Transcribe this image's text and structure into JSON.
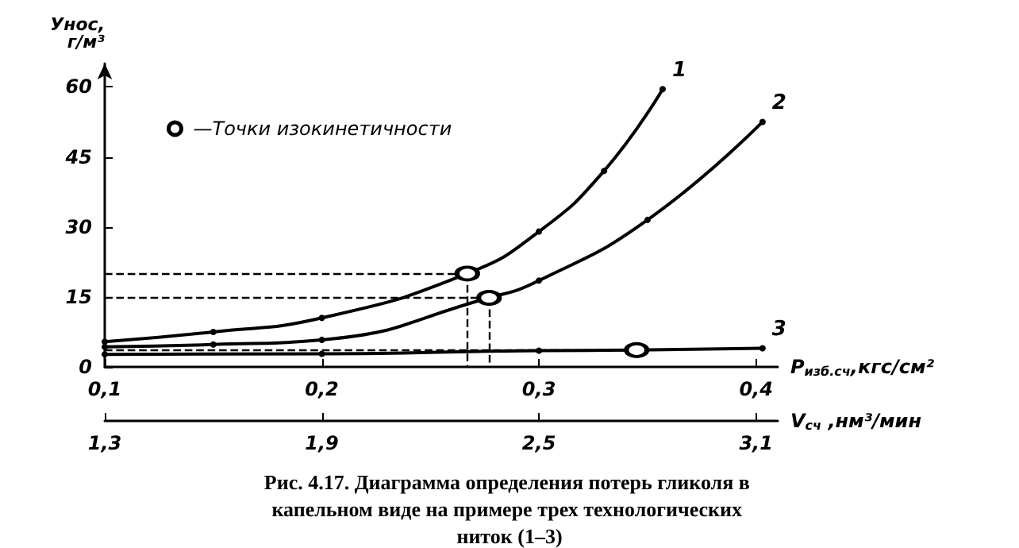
{
  "chart_data": {
    "type": "line",
    "title": "Рис. 4.17. Диаграмма определения потерь гликоля в капельном виде на примере трех технологических ниток (1–3)",
    "ylabel": "Унос,\nг/м³",
    "xlabel": "P$_{изб.сч}$,кгс/см²",
    "x2label": "V$_{сч}$ ,нм³/мин",
    "xlim": [
      0.1,
      0.41
    ],
    "xticks": [
      {
        "value": 0.1,
        "label": "0,1"
      },
      {
        "value": 0.2,
        "label": "0,2"
      },
      {
        "value": 0.3,
        "label": "0,3"
      },
      {
        "value": 0.4,
        "label": "0,4"
      }
    ],
    "x2lim": [
      1.3,
      3.16
    ],
    "x2ticks": [
      {
        "value": 1.3,
        "label": "1,3"
      },
      {
        "value": 1.9,
        "label": "1,9"
      },
      {
        "value": 2.5,
        "label": "2,5"
      },
      {
        "value": 3.1,
        "label": "3,1"
      }
    ],
    "ylim": [
      0,
      65
    ],
    "yticks": [
      0,
      15,
      30,
      45,
      60
    ],
    "marker": "circle",
    "line_style": "solid",
    "grid": false,
    "legend": "top left",
    "series": [
      {
        "color": "#000000",
        "x": [
          0.1,
          0.15,
          0.2,
          0.267,
          0.3,
          0.33,
          0.357
        ],
        "values": [
          5.4,
          7.5,
          10.5,
          20,
          29,
          42,
          59.5
        ]
      },
      {
        "color": "#000000",
        "x": [
          0.1,
          0.15,
          0.2,
          0.277,
          0.3,
          0.35,
          0.403
        ],
        "values": [
          4.3,
          4.8,
          5.8,
          14.8,
          18.5,
          31.5,
          52.5
        ]
      },
      {
        "color": "#000000",
        "x": [
          0.1,
          0.2,
          0.3,
          0.345,
          0.403
        ],
        "values": [
          2.7,
          2.8,
          3.5,
          3.6,
          4
        ]
      },
      {
        "name": "—Точки изокинетичности",
        "type": "scatter",
        "color": "#000000",
        "x": [
          0.267,
          0.277,
          0.345
        ],
        "values": [
          20,
          14.8,
          3.6
        ]
      }
    ],
    "annotations": [
      "1",
      "2",
      "3"
    ],
    "ref_lines": [
      {
        "axis": "y",
        "value": 20,
        "line_style": "dashed",
        "color": "#000000"
      },
      {
        "axis": "y",
        "value": 14.8,
        "line_style": "dashed",
        "color": "#000000"
      },
      {
        "axis": "y",
        "value": 3.6,
        "line_style": "dashed",
        "color": "#000000"
      },
      {
        "axis": "x",
        "value": 0.267,
        "line_style": "dashed",
        "color": "#000000"
      },
      {
        "axis": "x",
        "value": 0.277,
        "line_style": "dashed",
        "color": "#000000"
      }
    ]
  }
}
